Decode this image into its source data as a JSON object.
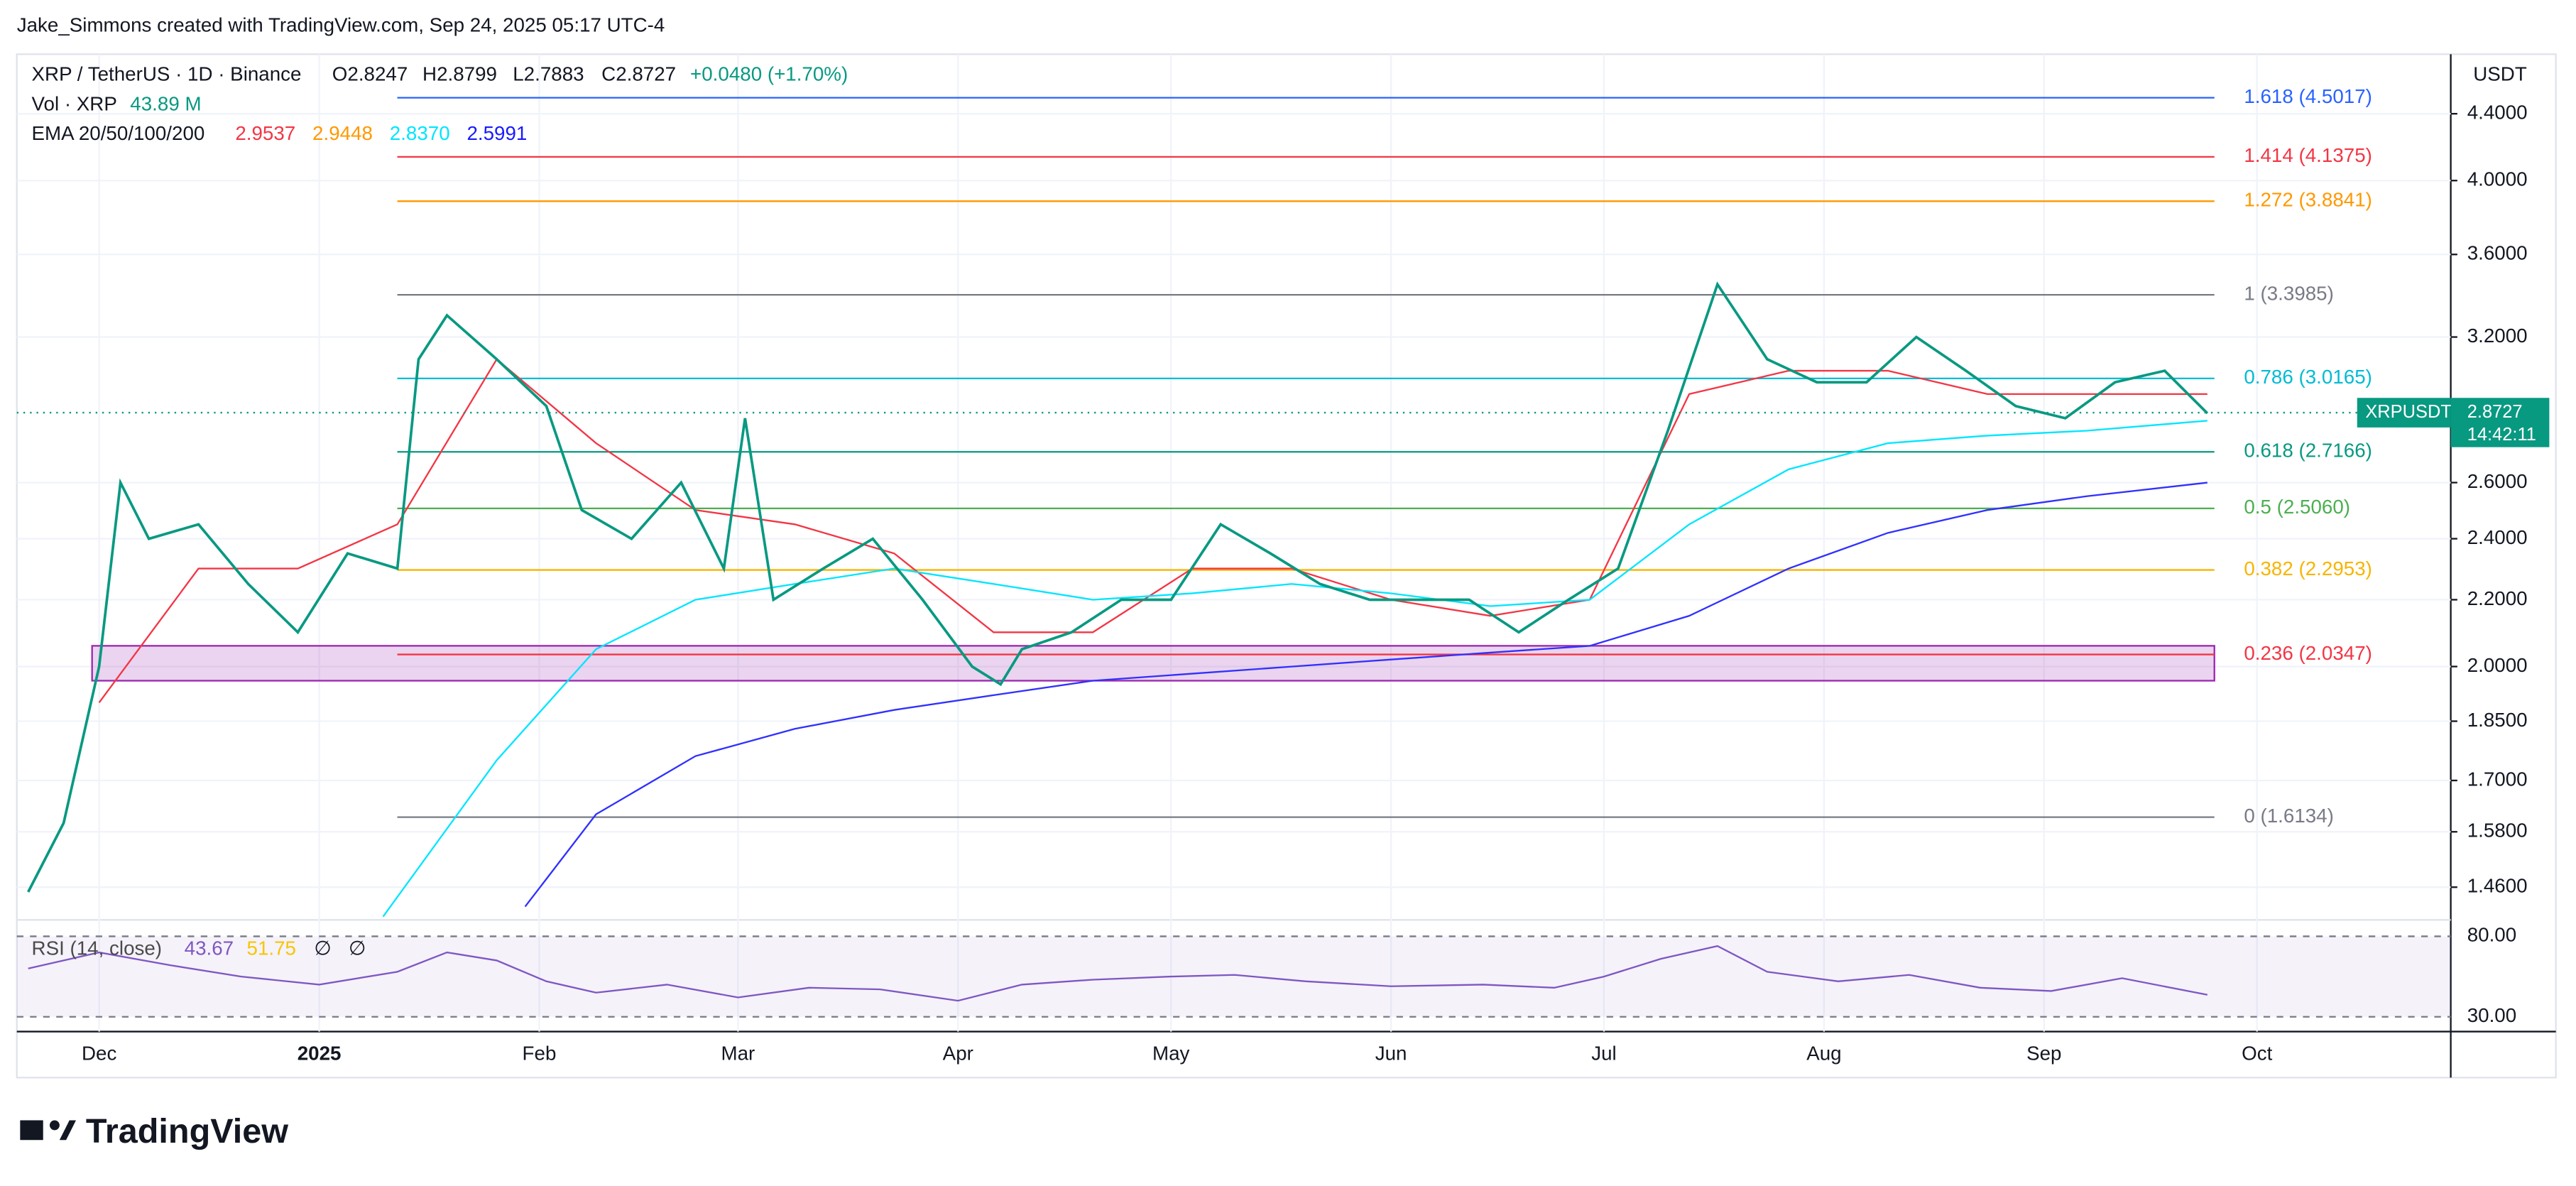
{
  "header": {
    "credit": "Jake_Simmons created with TradingView.com, Sep 24, 2025 05:17 UTC-4"
  },
  "legend": {
    "symbol": "XRP / TetherUS · 1D · Binance",
    "open": "O2.8247",
    "high": "H2.8799",
    "low": "L2.7883",
    "close": "C2.8727",
    "change": "+0.0480 (+1.70%)",
    "volume_label": "Vol · XRP",
    "volume_value": "43.89 M",
    "ema_label": "EMA 20/50/100/200",
    "ema_values": [
      {
        "text": "2.9537",
        "color": "#f23645"
      },
      {
        "text": "2.9448",
        "color": "#ff9800"
      },
      {
        "text": "2.8370",
        "color": "#00e5ff"
      },
      {
        "text": "2.5991",
        "color": "#1a1aff"
      }
    ]
  },
  "chart_data": {
    "type": "line",
    "log_scale": true,
    "grid": true,
    "unit": "USDT",
    "xlim": [
      -11.6,
      331.3
    ],
    "xticks": [
      {
        "value": 0,
        "label": "Dec"
      },
      {
        "value": 31,
        "label": "2025"
      },
      {
        "value": 62,
        "label": "Feb"
      },
      {
        "value": 90,
        "label": "Mar"
      },
      {
        "value": 121,
        "label": "Apr"
      },
      {
        "value": 151,
        "label": "May"
      },
      {
        "value": 182,
        "label": "Jun"
      },
      {
        "value": 212,
        "label": "Jul"
      },
      {
        "value": 243,
        "label": "Aug"
      },
      {
        "value": 274,
        "label": "Sep"
      },
      {
        "value": 304,
        "label": "Oct"
      }
    ],
    "ylim": [
      1.4,
      4.79
    ],
    "yticks": [
      {
        "value": 4.4,
        "label": "4.4000"
      },
      {
        "value": 4.0,
        "label": "4.0000"
      },
      {
        "value": 3.6,
        "label": "3.6000"
      },
      {
        "value": 3.2,
        "label": "3.2000"
      },
      {
        "value": 2.6,
        "label": "2.6000"
      },
      {
        "value": 2.4,
        "label": "2.4000"
      },
      {
        "value": 2.2,
        "label": "2.2000"
      },
      {
        "value": 2.0,
        "label": "2.0000"
      },
      {
        "value": 1.85,
        "label": "1.8500"
      },
      {
        "value": 1.7,
        "label": "1.7000"
      },
      {
        "value": 1.58,
        "label": "1.5800"
      },
      {
        "value": 1.46,
        "label": "1.4600"
      }
    ],
    "series": [
      {
        "name": "XRPUSDT",
        "color": "#089981",
        "x": [
          -10,
          -5,
          0,
          3,
          7,
          14,
          21,
          28,
          35,
          42,
          45,
          49,
          56,
          63,
          68,
          75,
          82,
          88,
          91,
          95,
          102,
          109,
          116,
          123,
          127,
          130,
          137,
          144,
          151,
          158,
          165,
          172,
          179,
          186,
          193,
          200,
          207,
          214,
          221,
          228,
          235,
          242,
          249,
          256,
          263,
          270,
          277,
          284,
          291,
          297
        ],
        "values": [
          1.45,
          1.6,
          2.0,
          2.6,
          2.4,
          2.45,
          2.25,
          2.1,
          2.35,
          2.3,
          3.1,
          3.3,
          3.1,
          2.9,
          2.5,
          2.4,
          2.6,
          2.3,
          2.85,
          2.2,
          2.3,
          2.4,
          2.2,
          2.0,
          1.95,
          2.05,
          2.1,
          2.2,
          2.2,
          2.45,
          2.35,
          2.25,
          2.2,
          2.2,
          2.2,
          2.1,
          2.2,
          2.3,
          2.8,
          3.45,
          3.1,
          3.0,
          3.0,
          3.2,
          3.05,
          2.9,
          2.85,
          3.0,
          3.05,
          2.87
        ]
      },
      {
        "color": "#f23645",
        "x": [
          0,
          14,
          28,
          42,
          56,
          70,
          84,
          98,
          112,
          126,
          140,
          154,
          168,
          182,
          196,
          210,
          224,
          238,
          252,
          266,
          280,
          297
        ],
        "values": [
          1.9,
          2.3,
          2.3,
          2.45,
          3.1,
          2.75,
          2.5,
          2.45,
          2.35,
          2.1,
          2.1,
          2.3,
          2.3,
          2.2,
          2.15,
          2.2,
          2.95,
          3.05,
          3.05,
          2.95,
          2.95,
          2.95
        ]
      },
      {
        "color": "#00e5ff",
        "x": [
          40,
          56,
          70,
          84,
          98,
          112,
          126,
          140,
          154,
          168,
          182,
          196,
          210,
          224,
          238,
          252,
          266,
          280,
          297
        ],
        "values": [
          1.4,
          1.75,
          2.05,
          2.2,
          2.25,
          2.3,
          2.25,
          2.2,
          2.22,
          2.25,
          2.22,
          2.18,
          2.2,
          2.45,
          2.65,
          2.75,
          2.78,
          2.8,
          2.84
        ]
      },
      {
        "color": "#3030ff",
        "x": [
          60,
          70,
          84,
          98,
          112,
          126,
          140,
          154,
          168,
          182,
          196,
          210,
          224,
          238,
          252,
          266,
          280,
          297
        ],
        "values": [
          1.42,
          1.62,
          1.76,
          1.83,
          1.88,
          1.92,
          1.96,
          1.98,
          2.0,
          2.02,
          2.04,
          2.06,
          2.15,
          2.3,
          2.42,
          2.5,
          2.55,
          2.6
        ]
      }
    ],
    "fib_x": [
      42,
      298
    ],
    "fib_levels": [
      {
        "value": 4.5017,
        "label": "1.618 (4.5017)",
        "color": "#2962ff"
      },
      {
        "value": 4.1375,
        "label": "1.414 (4.1375)",
        "color": "#f23645"
      },
      {
        "value": 3.8841,
        "label": "1.272 (3.8841)",
        "color": "#ff9800"
      },
      {
        "value": 3.3985,
        "label": "1 (3.3985)",
        "color": "#787b86"
      },
      {
        "value": 3.0165,
        "label": "0.786 (3.0165)",
        "color": "#00bcd4"
      },
      {
        "value": 2.7166,
        "label": "0.618 (2.7166)",
        "color": "#089981"
      },
      {
        "value": 2.506,
        "label": "0.5 (2.5060)",
        "color": "#4caf50"
      },
      {
        "value": 2.2953,
        "label": "0.382 (2.2953)",
        "color": "#f7b500"
      },
      {
        "value": 2.0347,
        "label": "0.236 (2.0347)",
        "color": "#f23645"
      },
      {
        "value": 1.6134,
        "label": "0 (1.6134)",
        "color": "#787b86"
      }
    ],
    "zone": {
      "x": [
        -1,
        298
      ],
      "y": [
        1.96,
        2.06
      ],
      "color": "#9c27b0"
    },
    "last_price": {
      "symbol": "XRPUSDT",
      "value": 2.8727,
      "label": "2.8727",
      "countdown": "14:42:11"
    },
    "rsi": {
      "label": "RSI (14, close)",
      "value_text": "43.67",
      "ma_text": "51.75",
      "extra": [
        "∅",
        "∅"
      ],
      "ylim": [
        20.8,
        90.2
      ],
      "yticks": [
        {
          "value": 80,
          "label": "80.00"
        },
        {
          "value": 30,
          "label": "30.00"
        }
      ],
      "x": [
        -10,
        0,
        10,
        20,
        31,
        42,
        49,
        56,
        63,
        70,
        80,
        90,
        100,
        110,
        121,
        130,
        140,
        151,
        160,
        170,
        182,
        195,
        205,
        212,
        220,
        228,
        235,
        245,
        255,
        265,
        275,
        285,
        297
      ],
      "values": [
        60,
        70,
        62,
        55,
        50,
        58,
        70,
        65,
        52,
        45,
        50,
        42,
        48,
        47,
        40,
        50,
        53,
        55,
        56,
        52,
        49,
        50,
        48,
        55,
        66,
        74,
        58,
        52,
        56,
        48,
        46,
        54,
        43.67
      ]
    }
  },
  "footer": {
    "brand": "TradingView"
  }
}
